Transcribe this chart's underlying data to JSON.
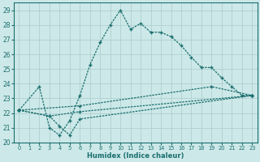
{
  "xlabel": "Humidex (Indice chaleur)",
  "xlim": [
    -0.5,
    23.5
  ],
  "ylim": [
    20,
    29.5
  ],
  "xticks": [
    0,
    1,
    2,
    3,
    4,
    5,
    6,
    7,
    8,
    9,
    10,
    11,
    12,
    13,
    14,
    15,
    16,
    17,
    18,
    19,
    20,
    21,
    22,
    23
  ],
  "yticks": [
    20,
    21,
    22,
    23,
    24,
    25,
    26,
    27,
    28,
    29
  ],
  "bg_color": "#cde8e8",
  "grid_color": "#b0d0d0",
  "line_color": "#1a6e6e",
  "line1": {
    "x": [
      0,
      2,
      3,
      4,
      5,
      6,
      7,
      8,
      9,
      10,
      11,
      12,
      13,
      14,
      15,
      16,
      17,
      18,
      19,
      20,
      21,
      22,
      23
    ],
    "y": [
      22.2,
      23.8,
      21.0,
      20.5,
      21.5,
      23.2,
      25.3,
      26.8,
      28.0,
      29.0,
      27.7,
      28.1,
      27.5,
      27.5,
      27.2,
      26.6,
      25.8,
      25.1,
      25.1,
      24.4,
      23.8,
      23.2,
      23.2
    ]
  },
  "line2": {
    "x": [
      0,
      3,
      4,
      5,
      6,
      23
    ],
    "y": [
      22.2,
      21.8,
      21.1,
      20.5,
      21.6,
      23.2
    ]
  },
  "line3": {
    "x": [
      0,
      3,
      6,
      23
    ],
    "y": [
      22.2,
      21.8,
      22.1,
      23.2
    ]
  },
  "line4": {
    "x": [
      0,
      6,
      19,
      23
    ],
    "y": [
      22.2,
      22.5,
      23.8,
      23.2
    ]
  }
}
